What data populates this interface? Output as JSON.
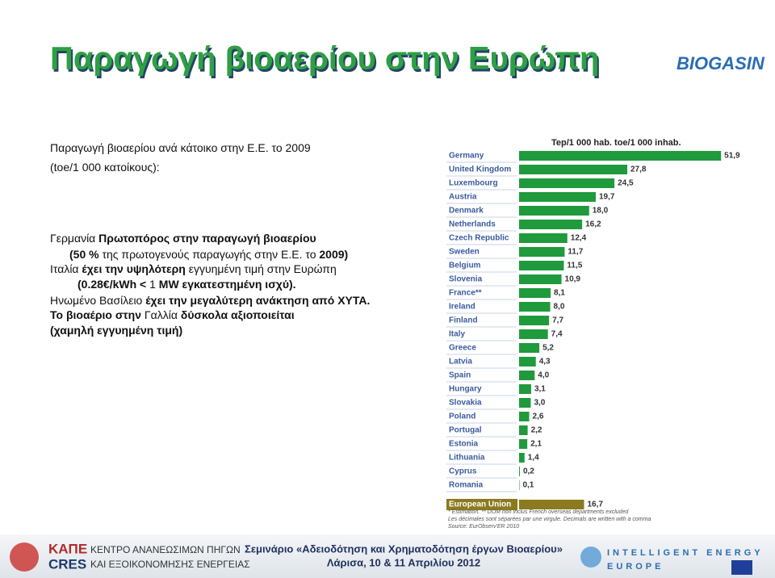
{
  "title": "Παραγωγή βιοαερίου στην Ευρώπη",
  "logo": "BIOGASIN",
  "body": [
    [
      {
        "text": "Παραγωγή βιοαερίου ανά κάτοικο στην Ε.Ε. το 2009",
        "bold": false
      }
    ],
    [
      {
        "text": "(toe/1 000 κατοίκους):",
        "bold": false
      }
    ],
    [
      {
        "text": "Γερμανία ",
        "bold": false
      },
      {
        "text": "Πρωτοπόρος στην παραγωγή βιοαερίου",
        "bold": true
      }
    ],
    [
      {
        "text": "(50 % ",
        "bold": true
      },
      {
        "text": "της πρωτογενούς παραγωγής στην Ε.Ε. το ",
        "bold": false
      },
      {
        "text": "2009)",
        "bold": true
      }
    ],
    [
      {
        "text": "Ιταλία ",
        "bold": false
      },
      {
        "text": "έχει την υψηλότερη ",
        "bold": true
      },
      {
        "text": "εγγυημένη τιμή στην Ευρώπη",
        "bold": false
      }
    ],
    [
      {
        "text": "(0.28€/kWh < ",
        "bold": true
      },
      {
        "text": "1",
        "bold": false
      },
      {
        "text": " MW εγκατεστημένη ισχύ).",
        "bold": true
      }
    ],
    [
      {
        "text": "Ηνωμένο Βασίλειο ",
        "bold": false
      },
      {
        "text": "έχει την μεγαλύτερη ανάκτηση από ΧΥΤΑ.",
        "bold": true
      }
    ],
    [
      {
        "text": "Το βιοαέριο στην ",
        "bold": true
      },
      {
        "text": "Γαλλία ",
        "bold": false
      },
      {
        "text": "δύσκολα αξιοποιείται",
        "bold": true
      }
    ],
    [
      {
        "text": "(χαμηλή εγγυημένη τιμή)",
        "bold": true
      }
    ]
  ],
  "chart_data": {
    "type": "bar",
    "orientation": "horizontal",
    "unit_header": "Tep/1 000 hab. toe/1 000 inhab.",
    "categories": [
      "Germany",
      "United Kingdom",
      "Luxembourg",
      "Austria",
      "Denmark",
      "Netherlands",
      "Czech Republic",
      "Sweden",
      "Belgium",
      "Slovenia",
      "France**",
      "Ireland",
      "Finland",
      "Italy",
      "Greece",
      "Latvia",
      "Spain",
      "Hungary",
      "Slovakia",
      "Poland",
      "Portugal",
      "Estonia",
      "Lithuania",
      "Cyprus",
      "Romania",
      "European Union"
    ],
    "values": [
      51.9,
      27.8,
      24.5,
      19.7,
      18.0,
      16.2,
      12.4,
      11.7,
      11.5,
      10.9,
      8.1,
      8.0,
      7.7,
      7.4,
      5.2,
      4.3,
      4.0,
      3.1,
      3.0,
      2.6,
      2.2,
      2.1,
      1.4,
      0.2,
      0.1,
      16.7
    ],
    "value_labels": [
      "51,9",
      "27,8",
      "24,5",
      "19,7",
      "18,0",
      "16,2",
      "12,4",
      "11,7",
      "11,5",
      "10,9",
      "8,1",
      "8,0",
      "7,7",
      "7,4",
      "5,2",
      "4,3",
      "4,0",
      "3,1",
      "3,0",
      "2,6",
      "2,2",
      "2,1",
      "1,4",
      "0,2",
      "0,1",
      "16,7"
    ],
    "colors": [
      "#1f9a3c",
      "#1f9a3c",
      "#1f9a3c",
      "#1f9a3c",
      "#1f9a3c",
      "#1f9a3c",
      "#1f9a3c",
      "#1f9a3c",
      "#1f9a3c",
      "#1f9a3c",
      "#1f9a3c",
      "#1f9a3c",
      "#1f9a3c",
      "#1f9a3c",
      "#1f9a3c",
      "#1f9a3c",
      "#1f9a3c",
      "#1f9a3c",
      "#1f9a3c",
      "#1f9a3c",
      "#1f9a3c",
      "#1f9a3c",
      "#1f9a3c",
      "#1f9a3c",
      "#1f9a3c",
      "#8b7a1e"
    ],
    "notes": [
      "* Estimation. ** DOM non inclus French overseas departments excluded",
      "Les décimales sont séparées par une virgule. Decimals are written with a comma",
      "Source: EurObserv'ER 2010"
    ]
  },
  "footer": {
    "org_short": [
      "ΚΑΠΕ",
      "CRES"
    ],
    "org_name": [
      "ΚΕΝΤΡΟ ΑΝΑΝΕΩΣΙΜΩΝ ΠΗΓΩΝ",
      "ΚΑΙ ΕΞΟΙΚΟΝΟΜΗΣΗΣ ΕΝΕΡΓΕΙΑΣ"
    ],
    "event": "Σεμινάριο «Αδειοδότηση και Χρηματοδότηση έργων Βιοαερίου»",
    "place_date": "Λάρισα, 10 & 11 Απριλίου 2012",
    "program": [
      "INTELLIGENT ENERGY",
      "EUROPE"
    ]
  }
}
